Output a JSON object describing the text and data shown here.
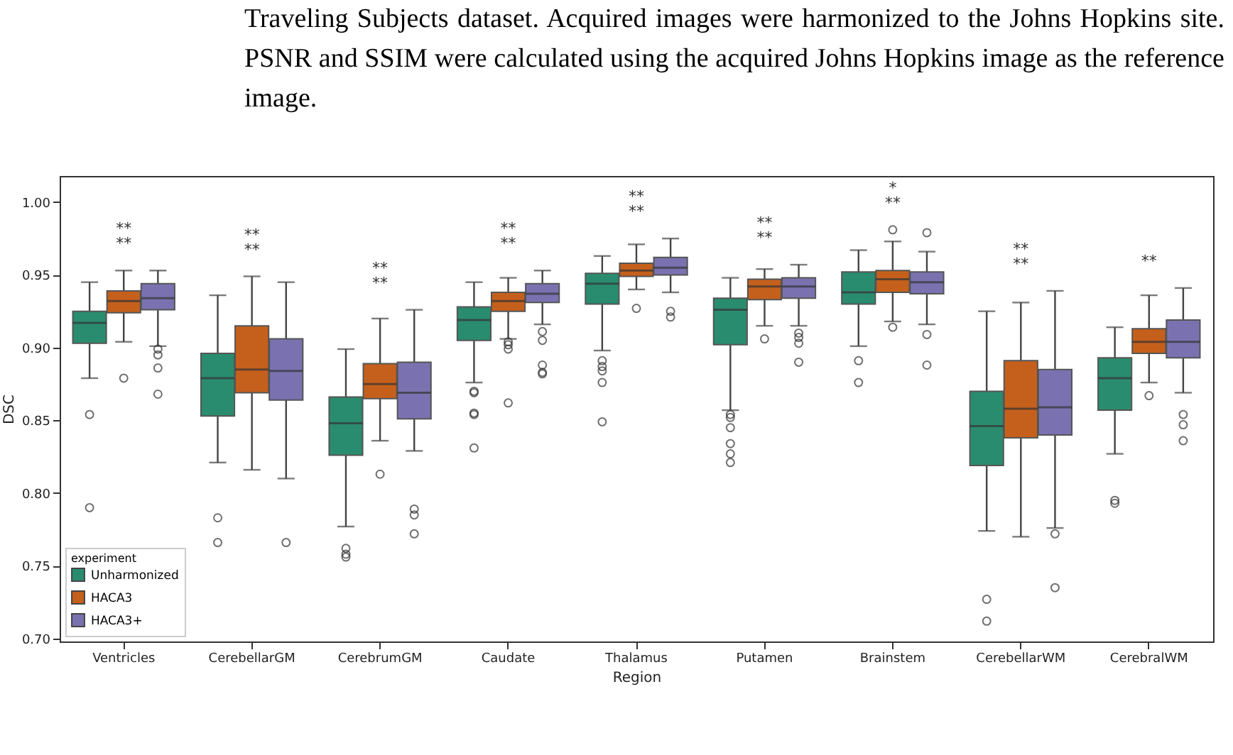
{
  "chart_data": {
    "type": "box",
    "xlabel": "Region",
    "ylabel": "DSC",
    "legend_title": "experiment",
    "legend": "bottom left",
    "grid": false,
    "categories": [
      "Ventricles",
      "CerebellarGM",
      "CerebrumGM",
      "Caudate",
      "Thalamus",
      "Putamen",
      "Brainstem",
      "CerebellarWM",
      "CerebralWM"
    ],
    "ylim": [
      0.698,
      1.018
    ],
    "yticks": [
      {
        "value": 0.7,
        "label": "0.70"
      },
      {
        "value": 0.75,
        "label": "0.75"
      },
      {
        "value": 0.8,
        "label": "0.80"
      },
      {
        "value": 0.85,
        "label": "0.85"
      },
      {
        "value": 0.9,
        "label": "0.90"
      },
      {
        "value": 0.95,
        "label": "0.95"
      },
      {
        "value": 1.0,
        "label": "1.00"
      }
    ],
    "series": [
      {
        "name": "Unharmonized",
        "color": "#2a8c6e",
        "boxes": [
          {
            "low": 0.879,
            "q1": 0.903,
            "median": 0.917,
            "q3": 0.925,
            "high": 0.945,
            "outliers": [
              0.854,
              0.79
            ]
          },
          {
            "low": 0.821,
            "q1": 0.853,
            "median": 0.879,
            "q3": 0.896,
            "high": 0.936,
            "outliers": [
              0.783,
              0.766
            ]
          },
          {
            "low": 0.777,
            "q1": 0.826,
            "median": 0.848,
            "q3": 0.866,
            "high": 0.899,
            "outliers": [
              0.762,
              0.758,
              0.756
            ]
          },
          {
            "low": 0.876,
            "q1": 0.905,
            "median": 0.919,
            "q3": 0.928,
            "high": 0.945,
            "outliers": [
              0.87,
              0.869,
              0.855,
              0.854,
              0.831
            ]
          },
          {
            "low": 0.898,
            "q1": 0.93,
            "median": 0.944,
            "q3": 0.951,
            "high": 0.963,
            "outliers": [
              0.891,
              0.887,
              0.884,
              0.876,
              0.849
            ]
          },
          {
            "low": 0.857,
            "q1": 0.902,
            "median": 0.926,
            "q3": 0.934,
            "high": 0.948,
            "outliers": [
              0.854,
              0.852,
              0.845,
              0.834,
              0.827,
              0.821
            ]
          },
          {
            "low": 0.901,
            "q1": 0.93,
            "median": 0.938,
            "q3": 0.952,
            "high": 0.967,
            "outliers": [
              0.891,
              0.876
            ]
          },
          {
            "low": 0.774,
            "q1": 0.819,
            "median": 0.846,
            "q3": 0.87,
            "high": 0.925,
            "outliers": [
              0.727,
              0.712
            ]
          },
          {
            "low": 0.827,
            "q1": 0.857,
            "median": 0.879,
            "q3": 0.893,
            "high": 0.914,
            "outliers": [
              0.795,
              0.793
            ]
          }
        ]
      },
      {
        "name": "HACA3",
        "color": "#c5601c",
        "boxes": [
          {
            "low": 0.904,
            "q1": 0.924,
            "median": 0.932,
            "q3": 0.939,
            "high": 0.953,
            "outliers": [
              0.879
            ]
          },
          {
            "low": 0.816,
            "q1": 0.869,
            "median": 0.885,
            "q3": 0.915,
            "high": 0.949
          },
          {
            "low": 0.836,
            "q1": 0.865,
            "median": 0.875,
            "q3": 0.889,
            "high": 0.92,
            "outliers": [
              0.813
            ]
          },
          {
            "low": 0.906,
            "q1": 0.925,
            "median": 0.932,
            "q3": 0.938,
            "high": 0.948,
            "outliers": [
              0.904,
              0.902,
              0.899,
              0.862
            ]
          },
          {
            "low": 0.94,
            "q1": 0.949,
            "median": 0.953,
            "q3": 0.958,
            "high": 0.971,
            "outliers": [
              0.927
            ]
          },
          {
            "low": 0.915,
            "q1": 0.933,
            "median": 0.942,
            "q3": 0.947,
            "high": 0.954,
            "outliers": [
              0.906
            ]
          },
          {
            "low": 0.918,
            "q1": 0.938,
            "median": 0.947,
            "q3": 0.953,
            "high": 0.973,
            "outliers": [
              0.981,
              0.914
            ]
          },
          {
            "low": 0.77,
            "q1": 0.838,
            "median": 0.858,
            "q3": 0.891,
            "high": 0.931
          },
          {
            "low": 0.876,
            "q1": 0.896,
            "median": 0.904,
            "q3": 0.913,
            "high": 0.936,
            "outliers": [
              0.867
            ]
          }
        ]
      },
      {
        "name": "HACA3+",
        "color": "#7a72b0",
        "boxes": [
          {
            "low": 0.901,
            "q1": 0.926,
            "median": 0.934,
            "q3": 0.944,
            "high": 0.953,
            "outliers": [
              0.899,
              0.895,
              0.886,
              0.868
            ]
          },
          {
            "low": 0.81,
            "q1": 0.864,
            "median": 0.884,
            "q3": 0.906,
            "high": 0.945,
            "outliers": [
              0.766
            ]
          },
          {
            "low": 0.829,
            "q1": 0.851,
            "median": 0.869,
            "q3": 0.89,
            "high": 0.926,
            "outliers": [
              0.789,
              0.785,
              0.772
            ]
          },
          {
            "low": 0.916,
            "q1": 0.931,
            "median": 0.937,
            "q3": 0.944,
            "high": 0.953,
            "outliers": [
              0.911,
              0.905,
              0.888,
              0.883,
              0.882
            ]
          },
          {
            "low": 0.938,
            "q1": 0.95,
            "median": 0.955,
            "q3": 0.962,
            "high": 0.975,
            "outliers": [
              0.925,
              0.921
            ]
          },
          {
            "low": 0.915,
            "q1": 0.934,
            "median": 0.942,
            "q3": 0.948,
            "high": 0.957,
            "outliers": [
              0.91,
              0.907,
              0.903,
              0.89
            ]
          },
          {
            "low": 0.916,
            "q1": 0.937,
            "median": 0.945,
            "q3": 0.952,
            "high": 0.966,
            "outliers": [
              0.979,
              0.909,
              0.888
            ]
          },
          {
            "low": 0.776,
            "q1": 0.84,
            "median": 0.859,
            "q3": 0.885,
            "high": 0.939,
            "outliers": [
              0.772,
              0.735
            ]
          },
          {
            "low": 0.869,
            "q1": 0.893,
            "median": 0.904,
            "q3": 0.919,
            "high": 0.941,
            "outliers": [
              0.854,
              0.847,
              0.836
            ]
          }
        ]
      }
    ],
    "subtitle": "Traveling Subjects dataset. Acquired images were harmonized to the Johns Hopkins site. PSNR and SSIM were calculated using the acquired Johns Hopkins image as the reference image.",
    "annotations": [
      "**",
      "**",
      "**",
      "**",
      "**",
      "**",
      "**",
      "**",
      "**",
      "**",
      "**",
      "**",
      "**",
      "*",
      "**",
      "**",
      "**"
    ]
  }
}
